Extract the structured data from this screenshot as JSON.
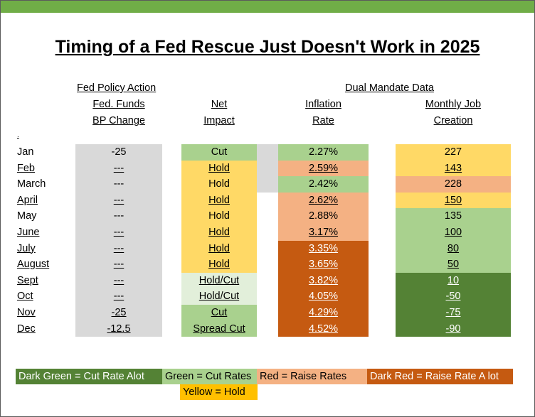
{
  "title": "Timing of a Fed Rescue Just Doesn't Work in 2025",
  "headers": {
    "fed_policy_action": "Fed Policy Action",
    "dual_mandate": "Dual Mandate Data",
    "fed_funds_1": "Fed. Funds",
    "fed_funds_2": "BP Change",
    "net_1": "Net",
    "net_2": "Impact",
    "infl_1": "Inflation",
    "infl_2": "Rate",
    "jobs_1": "Monthly Job",
    "jobs_2": "Creation",
    "stub": "."
  },
  "colors": {
    "grey": "#d9d9d9",
    "light_green": "#a9d18e",
    "pale_green": "#e2efda",
    "dark_green": "#548235",
    "yellow": "#ffd966",
    "salmon": "#f4b183",
    "dark_red": "#c55a11",
    "legend_yellow": "#ffc000"
  },
  "rows": [
    {
      "month": "Jan",
      "bp": "-25",
      "net": "Cut",
      "infl": "2.27%",
      "jobs": "227",
      "net_color": "light_green",
      "infl_color": "light_green",
      "jobs_color": "yellow",
      "u_month": false,
      "u_bp": false,
      "u_net": false,
      "u_infl": false,
      "u_jobs": false
    },
    {
      "month": "Feb",
      "bp": "---",
      "net": "Hold",
      "infl": "2.59%",
      "jobs": "143",
      "net_color": "yellow",
      "infl_color": "salmon",
      "jobs_color": "yellow",
      "u_month": true,
      "u_bp": true,
      "u_net": true,
      "u_infl": true,
      "u_jobs": true
    },
    {
      "month": "March",
      "bp": "---",
      "net": "Hold",
      "infl": "2.42%",
      "jobs": "228",
      "net_color": "yellow",
      "infl_color": "light_green",
      "jobs_color": "salmon",
      "u_month": false,
      "u_bp": false,
      "u_net": false,
      "u_infl": false,
      "u_jobs": false
    },
    {
      "month": "April",
      "bp": "---",
      "net": "Hold",
      "infl": "2.62%",
      "jobs": "150",
      "net_color": "yellow",
      "infl_color": "salmon",
      "jobs_color": "yellow",
      "u_month": true,
      "u_bp": true,
      "u_net": true,
      "u_infl": true,
      "u_jobs": true
    },
    {
      "month": "May",
      "bp": "---",
      "net": "Hold",
      "infl": "2.88%",
      "jobs": "135",
      "net_color": "yellow",
      "infl_color": "salmon",
      "jobs_color": "light_green",
      "u_month": false,
      "u_bp": false,
      "u_net": false,
      "u_infl": false,
      "u_jobs": false
    },
    {
      "month": "June",
      "bp": "---",
      "net": "Hold",
      "infl": "3.17%",
      "jobs": "100",
      "net_color": "yellow",
      "infl_color": "salmon",
      "jobs_color": "light_green",
      "u_month": true,
      "u_bp": true,
      "u_net": true,
      "u_infl": true,
      "u_jobs": true
    },
    {
      "month": "July",
      "bp": "---",
      "net": "Hold",
      "infl": "3.35%",
      "jobs": "80",
      "net_color": "yellow",
      "infl_color": "dark_red",
      "jobs_color": "light_green",
      "u_month": true,
      "u_bp": true,
      "u_net": true,
      "u_infl": true,
      "u_jobs": true
    },
    {
      "month": "August",
      "bp": "---",
      "net": "Hold",
      "infl": "3.65%",
      "jobs": "50",
      "net_color": "yellow",
      "infl_color": "dark_red",
      "jobs_color": "light_green",
      "u_month": true,
      "u_bp": true,
      "u_net": true,
      "u_infl": true,
      "u_jobs": true
    },
    {
      "month": "Sept",
      "bp": "---",
      "net": "Hold/Cut",
      "infl": "3.82%",
      "jobs": "10",
      "net_color": "pale_green",
      "infl_color": "dark_red",
      "jobs_color": "dark_green",
      "u_month": true,
      "u_bp": true,
      "u_net": true,
      "u_infl": true,
      "u_jobs": true
    },
    {
      "month": "Oct",
      "bp": "---",
      "net": "Hold/Cut",
      "infl": "4.05%",
      "jobs": "-50",
      "net_color": "pale_green",
      "infl_color": "dark_red",
      "jobs_color": "dark_green",
      "u_month": true,
      "u_bp": true,
      "u_net": true,
      "u_infl": true,
      "u_jobs": true
    },
    {
      "month": "Nov",
      "bp": "-25",
      "net": "Cut",
      "infl": "4.29%",
      "jobs": "-75",
      "net_color": "light_green",
      "infl_color": "dark_red",
      "jobs_color": "dark_green",
      "u_month": true,
      "u_bp": true,
      "u_net": true,
      "u_infl": true,
      "u_jobs": true
    },
    {
      "month": "Dec",
      "bp": "-12.5",
      "net": "Spread Cut",
      "infl": "4.52%",
      "jobs": "-90",
      "net_color": "light_green",
      "infl_color": "dark_red",
      "jobs_color": "dark_green",
      "u_month": true,
      "u_bp": true,
      "u_net": true,
      "u_infl": true,
      "u_jobs": true
    }
  ],
  "legend": {
    "dark_green": "Dark Green = Cut Rate Alot",
    "green": "Green = Cut Rates",
    "red": "Red = Raise Rates",
    "dark_red": "Dark Red = Raise Rate A lot",
    "yellow": "Yellow = Hold"
  }
}
